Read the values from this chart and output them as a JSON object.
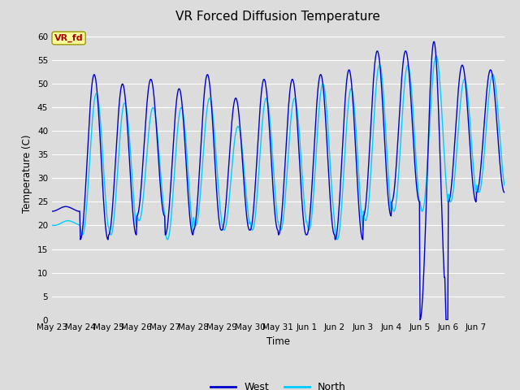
{
  "title": "VR Forced Diffusion Temperature",
  "ylabel": "Temperature (C)",
  "xlabel": "Time",
  "ylim": [
    0,
    62
  ],
  "yticks": [
    0,
    5,
    10,
    15,
    20,
    25,
    30,
    35,
    40,
    45,
    50,
    55,
    60
  ],
  "west_color": "#0000CC",
  "north_color": "#00CCFF",
  "bg_color": "#DCDCDC",
  "plot_bg": "#DCDCDC",
  "legend_west": "West",
  "legend_north": "North",
  "label_text": "VR_fd",
  "label_bg": "#FFFF99",
  "label_fg": "#AA0000",
  "x_tick_labels": [
    "May 23",
    "May 24",
    "May 25",
    "May 26",
    "May 27",
    "May 28",
    "May 29",
    "May 30",
    "May 31",
    "Jun 1",
    "Jun 2",
    "Jun 3",
    "Jun 4",
    "Jun 5",
    "Jun 6",
    "Jun 7"
  ],
  "peaks_west": [
    24,
    52,
    50,
    51,
    49,
    52,
    47,
    51,
    51,
    52,
    53,
    57,
    57,
    59,
    54,
    53
  ],
  "troughs_west": [
    23,
    17,
    18,
    22,
    18,
    19,
    19,
    19,
    18,
    18,
    17,
    22,
    25,
    0,
    25,
    27
  ],
  "peaks_north": [
    21,
    48,
    46,
    45,
    45,
    47,
    41,
    47,
    47,
    50,
    49,
    54,
    54,
    56,
    51,
    52
  ],
  "troughs_north": [
    20,
    18,
    18,
    21,
    17,
    20,
    19,
    19,
    19,
    19,
    17,
    21,
    23,
    23,
    25,
    27
  ]
}
